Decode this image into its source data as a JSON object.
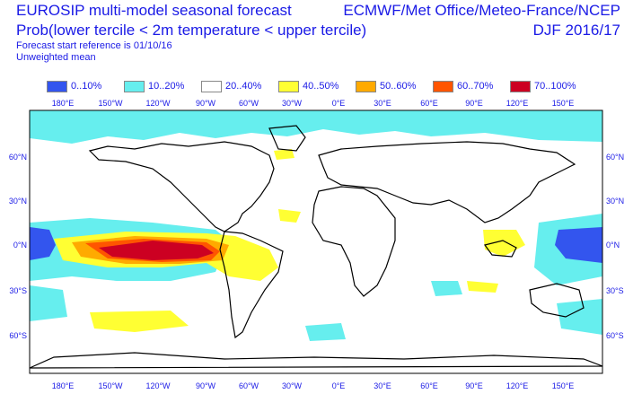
{
  "header": {
    "title_line1": "EUROSIP multi-model seasonal forecast",
    "title_line2": "Prob(lower tercile < 2m temperature < upper tercile)",
    "forecast_ref": "Forecast start reference is 01/10/16",
    "weighting": "Unweighted mean",
    "source": "ECMWF/Met Office/Meteo-France/NCEP",
    "season": "DJF 2016/17"
  },
  "legend": [
    {
      "label": "0..10%",
      "color": "#3355ee"
    },
    {
      "label": "10..20%",
      "color": "#66eeee"
    },
    {
      "label": "20..40%",
      "color": "#ffffff"
    },
    {
      "label": "40..50%",
      "color": "#ffff33"
    },
    {
      "label": "50..60%",
      "color": "#ffaa00"
    },
    {
      "label": "60..70%",
      "color": "#ff5500"
    },
    {
      "label": "70..100%",
      "color": "#cc0022"
    }
  ],
  "axes": {
    "lon_labels": [
      "180°E",
      "150°W",
      "120°W",
      "90°W",
      "60°W",
      "30°W",
      "0°E",
      "30°E",
      "60°E",
      "90°E",
      "120°E",
      "150°E"
    ],
    "lat_labels": [
      "60°N",
      "30°N",
      "0°N",
      "30°S",
      "60°S"
    ]
  }
}
